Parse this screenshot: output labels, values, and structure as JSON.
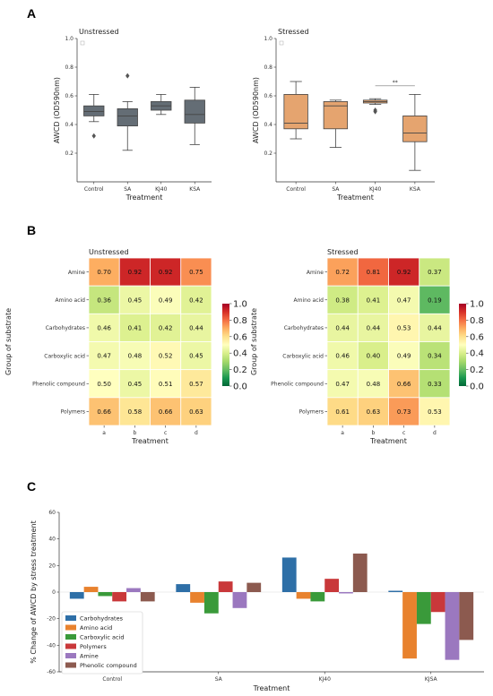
{
  "panels": {
    "a": "A",
    "b": "B",
    "c": "C"
  },
  "chart_data": [
    {
      "id": "A1",
      "type": "box",
      "title": "Unstressed",
      "xlabel": "Treatment",
      "ylabel": "AWCD (OD590nm)",
      "ylim": [
        0,
        1.0
      ],
      "yticks": [
        0.2,
        0.4,
        0.6,
        0.8,
        1.0
      ],
      "color": "#646d75",
      "categories": [
        "Control",
        "SA",
        "KJ40",
        "KSA"
      ],
      "boxes": [
        {
          "min": 0.42,
          "q1": 0.46,
          "median": 0.49,
          "q3": 0.53,
          "max": 0.61,
          "outliers": [
            0.32
          ]
        },
        {
          "min": 0.22,
          "q1": 0.39,
          "median": 0.46,
          "q3": 0.51,
          "max": 0.56,
          "outliers": [
            0.74
          ]
        },
        {
          "min": 0.47,
          "q1": 0.5,
          "median": 0.53,
          "q3": 0.56,
          "max": 0.61,
          "outliers": []
        },
        {
          "min": 0.26,
          "q1": 0.41,
          "median": 0.47,
          "q3": 0.57,
          "max": 0.66,
          "outliers": []
        }
      ]
    },
    {
      "id": "A2",
      "type": "box",
      "title": "Stressed",
      "xlabel": "Treatment",
      "ylabel": "AWCD (OD590nm)",
      "ylim": [
        0,
        1.0
      ],
      "yticks": [
        0.2,
        0.4,
        0.6,
        0.8,
        1.0
      ],
      "color": "#e5a46f",
      "categories": [
        "Control",
        "SA",
        "KJ40",
        "KSA"
      ],
      "annotation": "**",
      "boxes": [
        {
          "min": 0.3,
          "q1": 0.37,
          "median": 0.41,
          "q3": 0.61,
          "max": 0.7,
          "outliers": []
        },
        {
          "min": 0.24,
          "q1": 0.37,
          "median": 0.53,
          "q3": 0.56,
          "max": 0.57,
          "outliers": []
        },
        {
          "min": 0.54,
          "q1": 0.55,
          "median": 0.56,
          "q3": 0.57,
          "max": 0.58,
          "outliers": [
            0.49,
            0.5
          ]
        },
        {
          "min": 0.08,
          "q1": 0.28,
          "median": 0.34,
          "q3": 0.46,
          "max": 0.61,
          "outliers": []
        }
      ]
    },
    {
      "id": "B1",
      "type": "heatmap",
      "title": "Unstressed",
      "xlabel": "Treatment",
      "ylabel": "Group of substrate",
      "x": [
        "a",
        "b",
        "c",
        "d"
      ],
      "y": [
        "Amine",
        "Amino acid",
        "Carbohydrates",
        "Carboxylic acid",
        "Phenolic compound",
        "Polymers"
      ],
      "values": [
        [
          0.7,
          0.92,
          0.92,
          0.75
        ],
        [
          0.36,
          0.45,
          0.49,
          0.42
        ],
        [
          0.46,
          0.41,
          0.42,
          0.44
        ],
        [
          0.47,
          0.48,
          0.52,
          0.45
        ],
        [
          0.5,
          0.45,
          0.51,
          0.57
        ],
        [
          0.66,
          0.58,
          0.66,
          0.63
        ]
      ],
      "colorbar_ticks": [
        "0.0",
        "0.2",
        "0.4",
        "0.6",
        "0.8",
        "1.0"
      ],
      "vmin": 0,
      "vmax": 1
    },
    {
      "id": "B2",
      "type": "heatmap",
      "title": "Stressed",
      "xlabel": "Treatment",
      "ylabel": "Group of substrate",
      "x": [
        "a",
        "b",
        "c",
        "d"
      ],
      "y": [
        "Amine",
        "Amino acid",
        "Carbohydrates",
        "Carboxylic acid",
        "Phenolic compound",
        "Polymers"
      ],
      "values": [
        [
          0.72,
          0.81,
          0.92,
          0.37
        ],
        [
          0.38,
          0.41,
          0.47,
          0.19
        ],
        [
          0.44,
          0.44,
          0.53,
          0.44
        ],
        [
          0.46,
          0.4,
          0.49,
          0.34
        ],
        [
          0.47,
          0.48,
          0.66,
          0.33
        ],
        [
          0.61,
          0.63,
          0.73,
          0.53
        ]
      ],
      "colorbar_ticks": [
        "0.0",
        "0.2",
        "0.4",
        "0.6",
        "0.8",
        "1.0"
      ],
      "vmin": 0,
      "vmax": 1
    },
    {
      "id": "C",
      "type": "bar",
      "xlabel": "Treatment",
      "ylabel": "% Change of AWCD by stress treatment",
      "ylim": [
        -60,
        60
      ],
      "yticks": [
        -60,
        -40,
        -20,
        0,
        20,
        40,
        60
      ],
      "categories": [
        "Control",
        "SA",
        "KJ40",
        "KJSA"
      ],
      "legend_position": "lower-left",
      "series": [
        {
          "name": "Carbohydrates",
          "color": "#2e6fa7",
          "values": [
            -5,
            6,
            26,
            1
          ]
        },
        {
          "name": "Amino acid",
          "color": "#e8822e",
          "values": [
            4,
            -8,
            -5,
            -50
          ]
        },
        {
          "name": "Carboxylic acid",
          "color": "#3a9a3a",
          "values": [
            -3,
            -16,
            -7,
            -24
          ]
        },
        {
          "name": "Polymers",
          "color": "#c9383a",
          "values": [
            -7,
            8,
            10,
            -15
          ]
        },
        {
          "name": "Amine",
          "color": "#9b78bf",
          "values": [
            3,
            -12,
            -1,
            -51
          ]
        },
        {
          "name": "Phenolic compound",
          "color": "#8c5a4f",
          "values": [
            -7,
            7,
            29,
            -36
          ]
        }
      ]
    }
  ]
}
